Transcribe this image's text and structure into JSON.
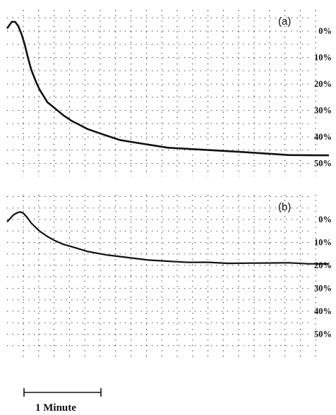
{
  "chart_data": [
    {
      "type": "line",
      "panel_label": "(a)",
      "x_unit": "minutes",
      "y_unit": "%",
      "yticks": [
        "0%",
        "10%",
        "20%",
        "30%",
        "40%",
        "50%"
      ],
      "ylim": [
        0,
        50
      ],
      "y_inverted": true,
      "grid": true,
      "series": [
        {
          "x": [
            0,
            0.06,
            0.1,
            0.14,
            0.18,
            0.22,
            0.26,
            0.3,
            0.35,
            0.4,
            0.5,
            0.6,
            0.7,
            0.8,
            0.9,
            1.0,
            1.1,
            1.25,
            1.4,
            1.6,
            1.8,
            2.0,
            2.25,
            2.5,
            2.75,
            3.0,
            3.25,
            3.5,
            3.75,
            4.0
          ],
          "y": [
            -1,
            -3.5,
            -3.5,
            -2,
            1,
            5,
            10,
            14.5,
            18.5,
            22,
            27,
            29.5,
            32,
            34,
            35.5,
            37,
            38,
            39.5,
            41,
            42,
            43,
            44,
            44.5,
            45,
            45.5,
            46,
            46.5,
            47,
            47,
            47
          ]
        }
      ]
    },
    {
      "type": "line",
      "panel_label": "(b)",
      "x_unit": "minutes",
      "y_unit": "%",
      "yticks": [
        "0%",
        "10%",
        "20%",
        "30%",
        "40%",
        "50%"
      ],
      "ylim": [
        0,
        50
      ],
      "y_inverted": true,
      "grid": true,
      "series": [
        {
          "x": [
            0,
            0.04,
            0.08,
            0.12,
            0.16,
            0.2,
            0.25,
            0.3,
            0.4,
            0.5,
            0.6,
            0.7,
            0.8,
            0.9,
            1.0,
            1.25,
            1.5,
            1.75,
            2.0,
            2.25,
            2.5,
            2.75,
            3.0,
            3.25,
            3.5,
            3.75,
            4.0
          ],
          "y": [
            1,
            -0.5,
            -2,
            -3,
            -3.5,
            -3,
            -1,
            1.5,
            5,
            7.5,
            9.5,
            11,
            12,
            13,
            14,
            15.5,
            16.5,
            17.5,
            18,
            18.5,
            18.5,
            19,
            19,
            19,
            19,
            19.5,
            19.5
          ]
        }
      ]
    }
  ],
  "scale_bar": {
    "label": "1 Minute",
    "minutes": 1
  }
}
